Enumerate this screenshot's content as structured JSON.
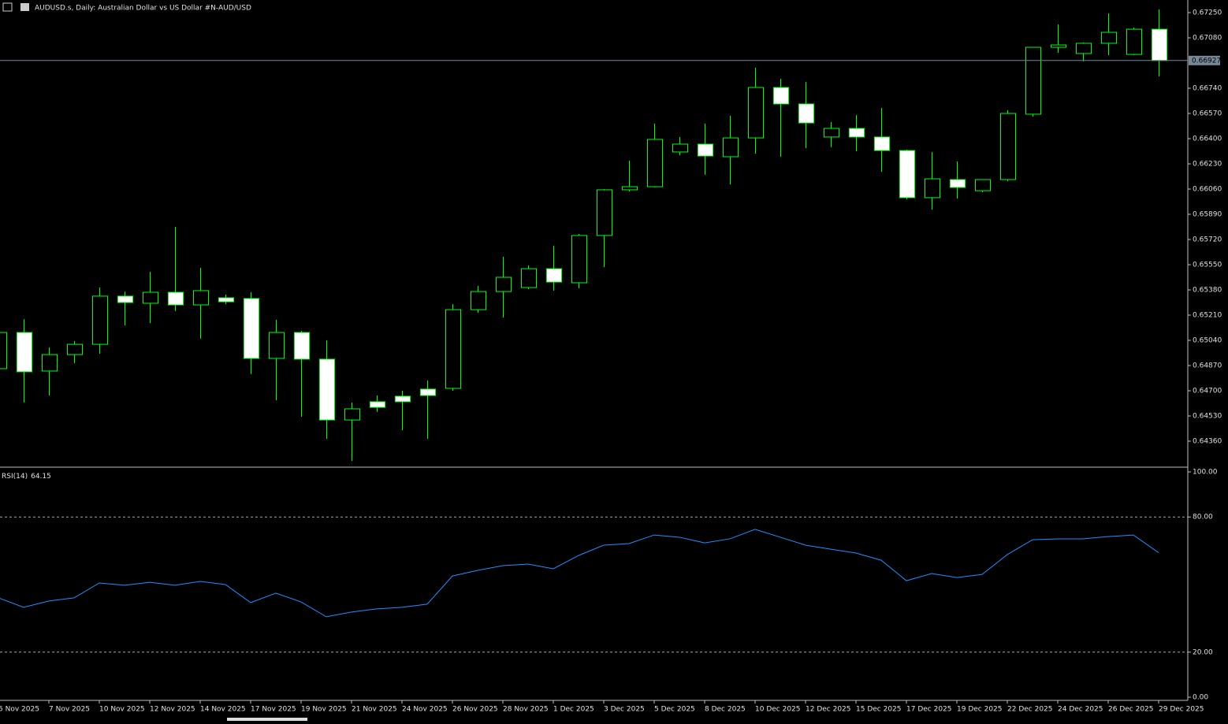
{
  "chart_data": [
    {
      "type": "candlestick",
      "title": "AUDUSD.s, Daily:  Australian Dollar vs US Dollar #N-AUD/USD",
      "categories": [
        "5 Nov 2025",
        null,
        "7 Nov 2025",
        null,
        "10 Nov 2025",
        null,
        "12 Nov 2025",
        null,
        "14 Nov 2025",
        null,
        "17 Nov 2025",
        null,
        "19 Nov 2025",
        null,
        "21 Nov 2025",
        null,
        "24 Nov 2025",
        null,
        "26 Nov 2025",
        null,
        "28 Nov 2025",
        null,
        "1 Dec 2025",
        null,
        "3 Dec 2025",
        null,
        "5 Dec 2025",
        null,
        "8 Dec 2025",
        null,
        "10 Dec 2025",
        null,
        "12 Dec 2025",
        null,
        "15 Dec 2025",
        null,
        "17 Dec 2025",
        null,
        "19 Dec 2025",
        null,
        "22 Dec 2025",
        null,
        "24 Dec 2025",
        null,
        "26 Dec 2025",
        null,
        "29 Dec 2025"
      ],
      "open": [
        0.64849,
        0.65093,
        0.64833,
        0.64944,
        0.65013,
        0.65338,
        0.6529,
        0.65364,
        0.65279,
        0.65327,
        0.65322,
        0.64918,
        0.65093,
        0.64913,
        0.64503,
        0.64626,
        0.64663,
        0.64711,
        0.64716,
        0.65247,
        0.65369,
        0.65396,
        0.65523,
        0.65428,
        0.65747,
        0.66055,
        0.66076,
        0.6631,
        0.66363,
        0.66278,
        0.66405,
        0.66745,
        0.66634,
        0.66411,
        0.66469,
        0.66411,
        0.6632,
        0.66002,
        0.66124,
        0.66049,
        0.66124,
        0.66565,
        0.67016,
        0.66974,
        0.67043,
        0.66968,
        0.67138
      ],
      "high": [
        0.65104,
        0.65183,
        0.64992,
        0.65035,
        0.65396,
        0.65369,
        0.65502,
        0.65805,
        0.65529,
        0.65348,
        0.65364,
        0.65178,
        0.65104,
        0.6504,
        0.6462,
        0.64668,
        0.647,
        0.64769,
        0.65284,
        0.65407,
        0.65603,
        0.65545,
        0.65678,
        0.65757,
        0.6606,
        0.66251,
        0.66501,
        0.66411,
        0.66501,
        0.66554,
        0.66878,
        0.66804,
        0.66782,
        0.66512,
        0.66559,
        0.66607,
        0.66326,
        0.6631,
        0.66246,
        0.66124,
        0.66591,
        0.67016,
        0.6717,
        0.67048,
        0.67245,
        0.67149,
        0.67271
      ],
      "low": [
        0.64838,
        0.6462,
        0.64668,
        0.64886,
        0.6495,
        0.65141,
        0.65157,
        0.65237,
        0.65051,
        0.65284,
        0.64812,
        0.64636,
        0.64525,
        0.64376,
        0.64227,
        0.64557,
        0.64434,
        0.64376,
        0.647,
        0.65226,
        0.65194,
        0.65385,
        0.65375,
        0.65391,
        0.65534,
        0.66044,
        0.66071,
        0.66288,
        0.66156,
        0.66092,
        0.66299,
        0.66278,
        0.66336,
        0.66342,
        0.66315,
        0.66177,
        0.65991,
        0.65922,
        0.65996,
        0.66039,
        0.66113,
        0.66549,
        0.66979,
        0.66921,
        0.66963,
        0.66963,
        0.6682
      ],
      "close": [
        0.65093,
        0.64828,
        0.64944,
        0.65013,
        0.65338,
        0.65295,
        0.65364,
        0.65279,
        0.65375,
        0.653,
        0.64918,
        0.65093,
        0.64913,
        0.64503,
        0.64578,
        0.64588,
        0.64626,
        0.64668,
        0.65247,
        0.65369,
        0.65465,
        0.65523,
        0.65433,
        0.65747,
        0.66055,
        0.66076,
        0.66395,
        0.66363,
        0.66283,
        0.66405,
        0.66745,
        0.66634,
        0.66506,
        0.66469,
        0.66411,
        0.6632,
        0.66002,
        0.66129,
        0.66071,
        0.66124,
        0.6657,
        0.67016,
        0.67032,
        0.67043,
        0.67117,
        0.67138,
        0.66927
      ],
      "outline_color": "#00ff00",
      "up_color": "#000000",
      "down_color": "#ffffff",
      "price_line_color": "#778899",
      "ylim": [
        0.6419,
        0.67335
      ],
      "yticks": [
        {
          "value": 0.6725,
          "label": "0.67250"
        },
        {
          "value": 0.6708,
          "label": "0.67080"
        },
        {
          "value": 0.6674,
          "label": "0.66740"
        },
        {
          "value": 0.6657,
          "label": "0.66570"
        },
        {
          "value": 0.664,
          "label": "0.66400"
        },
        {
          "value": 0.6623,
          "label": "0.66230"
        },
        {
          "value": 0.6606,
          "label": "0.66060"
        },
        {
          "value": 0.6589,
          "label": "0.65890"
        },
        {
          "value": 0.6572,
          "label": "0.65720"
        },
        {
          "value": 0.6555,
          "label": "0.65550"
        },
        {
          "value": 0.6538,
          "label": "0.65380"
        },
        {
          "value": 0.6521,
          "label": "0.65210"
        },
        {
          "value": 0.6504,
          "label": "0.65040"
        },
        {
          "value": 0.6487,
          "label": "0.64870"
        },
        {
          "value": 0.647,
          "label": "0.64700"
        },
        {
          "value": 0.6453,
          "label": "0.64530"
        },
        {
          "value": 0.6436,
          "label": "0.64360"
        }
      ]
    },
    {
      "type": "line",
      "series": [
        {
          "name": "RSI(14)",
          "color": "#1e90ff",
          "values": [
            44.1,
            39.9,
            42.7,
            44.1,
            50.7,
            49.7,
            51.0,
            49.7,
            51.4,
            50.0,
            42.0,
            46.2,
            42.3,
            35.7,
            37.8,
            39.2,
            39.9,
            41.3,
            53.8,
            56.3,
            58.4,
            59.1,
            57.0,
            62.9,
            67.5,
            68.2,
            72.0,
            71.0,
            68.5,
            70.3,
            74.5,
            71.0,
            67.5,
            65.7,
            64.0,
            60.8,
            51.7,
            54.9,
            53.1,
            54.5,
            63.3,
            69.9,
            70.3,
            70.3,
            71.3,
            72.0,
            64.15
          ]
        }
      ],
      "ylim": [
        -1.75,
        101.4
      ],
      "yticks": [
        {
          "value": 100,
          "label": "100.00"
        },
        {
          "value": 80,
          "label": "80.00"
        },
        {
          "value": 20,
          "label": "20.00"
        },
        {
          "value": 0,
          "label": "0.00"
        }
      ],
      "levels": [
        80,
        20
      ]
    }
  ]
}
